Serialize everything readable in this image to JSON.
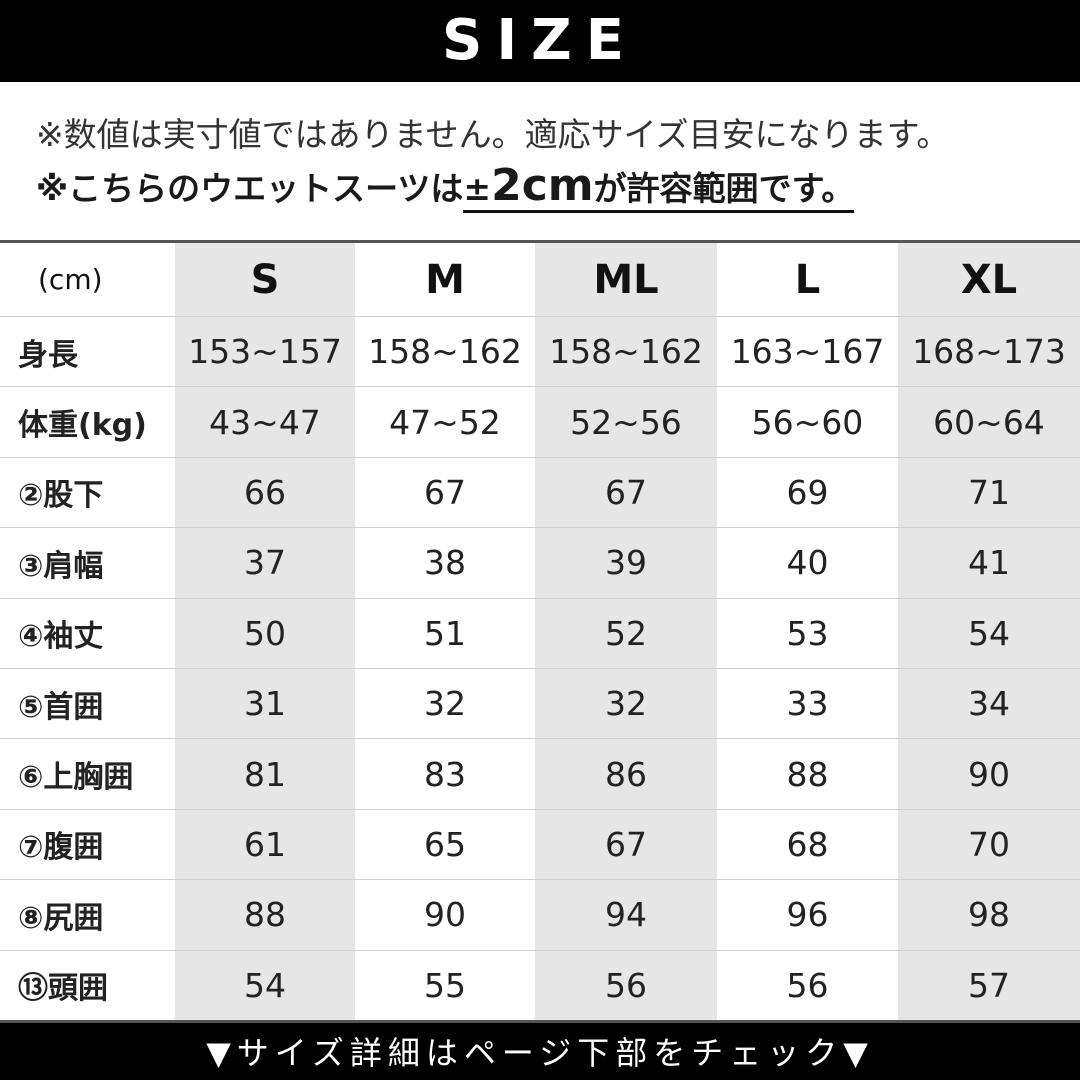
{
  "header": {
    "title": "SIZE"
  },
  "notes": {
    "line1": "※数値は実寸値ではありません。適応サイズ目安になります。",
    "line2_prefix": "※こちらのウエットスーツは",
    "line2_pm": "±",
    "line2_value": "2cm",
    "line2_suffix": "が許容範囲です。"
  },
  "table": {
    "unit": "(cm)",
    "sizes": [
      "S",
      "M",
      "ML",
      "L",
      "XL"
    ],
    "rows": [
      {
        "label": "身長",
        "values": [
          "153~157",
          "158~162",
          "158~162",
          "163~167",
          "168~173"
        ]
      },
      {
        "label": "体重(kg)",
        "values": [
          "43~47",
          "47~52",
          "52~56",
          "56~60",
          "60~64"
        ]
      },
      {
        "label": "②股下",
        "values": [
          "66",
          "67",
          "67",
          "69",
          "71"
        ]
      },
      {
        "label": "③肩幅",
        "values": [
          "37",
          "38",
          "39",
          "40",
          "41"
        ]
      },
      {
        "label": "④袖丈",
        "values": [
          "50",
          "51",
          "52",
          "53",
          "54"
        ]
      },
      {
        "label": "⑤首囲",
        "values": [
          "31",
          "32",
          "32",
          "33",
          "34"
        ]
      },
      {
        "label": "⑥上胸囲",
        "values": [
          "81",
          "83",
          "86",
          "88",
          "90"
        ]
      },
      {
        "label": "⑦腹囲",
        "values": [
          "61",
          "65",
          "67",
          "68",
          "70"
        ]
      },
      {
        "label": "⑧尻囲",
        "values": [
          "88",
          "90",
          "94",
          "96",
          "98"
        ]
      },
      {
        "label": "⑬頭囲",
        "values": [
          "54",
          "55",
          "56",
          "56",
          "57"
        ]
      }
    ]
  },
  "footer": {
    "text": "▼サイズ詳細はページ下部をチェック▼"
  }
}
